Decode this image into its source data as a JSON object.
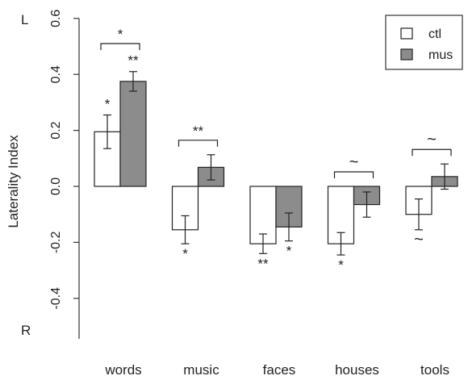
{
  "chart_data": {
    "type": "bar",
    "ylabel": "Laterality Index",
    "ylim": [
      -0.55,
      0.6
    ],
    "yticks": [
      "0.6",
      "0.4",
      "0.2",
      "0.0",
      "-0.2",
      "-0.4"
    ],
    "ytick_values": [
      0.6,
      0.4,
      0.2,
      0.0,
      -0.2,
      -0.4
    ],
    "y_end_labels": {
      "top": "L",
      "bottom": "R"
    },
    "categories": [
      "words",
      "music",
      "faces",
      "houses",
      "tools"
    ],
    "series": [
      {
        "name": "ctl",
        "color": "#ffffff",
        "values": [
          0.195,
          -0.155,
          -0.205,
          -0.205,
          -0.1
        ],
        "errors": [
          0.06,
          0.05,
          0.035,
          0.04,
          0.055
        ],
        "marks": [
          "*",
          "*",
          "**",
          "*",
          "~"
        ]
      },
      {
        "name": "mus",
        "color": "#8c8c8c",
        "values": [
          0.375,
          0.068,
          -0.145,
          -0.065,
          0.035
        ],
        "errors": [
          0.035,
          0.045,
          0.05,
          0.045,
          0.045
        ],
        "marks": [
          "**",
          "",
          "*",
          "",
          ""
        ]
      }
    ],
    "comparisons": [
      "*",
      "**",
      "",
      "~",
      "~"
    ],
    "legend_position": "top-right",
    "grid": false
  }
}
